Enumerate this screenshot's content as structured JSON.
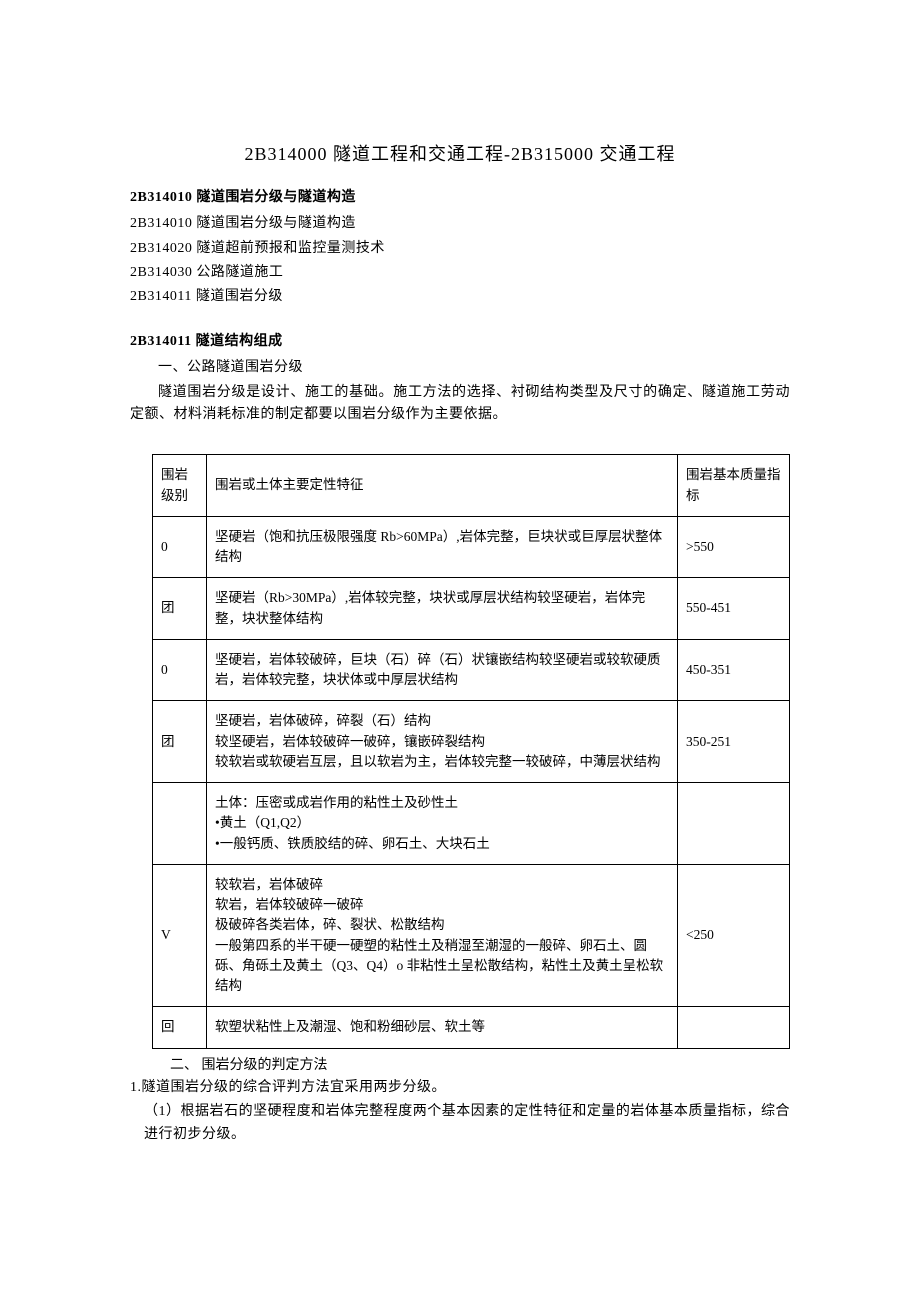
{
  "title": "2B314000 隧道工程和交通工程-2B315000 交通工程",
  "section1_head": "2B314010 隧道围岩分级与隧道构造",
  "toc": [
    "2B314010 隧道围岩分级与隧道构造",
    "2B314020 隧道超前预报和监控量测技术",
    "2B314030 公路隧道施工",
    "2B314011 隧道围岩分级"
  ],
  "section2_head": "2B314011 隧道结构组成",
  "sub_line1": "一、公路隧道围岩分级",
  "intro_para": "隧道围岩分级是设计、施工的基础。施工方法的选择、衬砌结构类型及尺寸的确定、隧道施工劳动定额、材料消耗标准的制定都要以围岩分级作为主要依据。",
  "table": {
    "header": [
      "围岩级别",
      "围岩或土体主要定性特征",
      "围岩基本质量指标"
    ],
    "rows": [
      [
        "0",
        "坚硬岩（饱和抗压极限强度 Rb>60MPa）,岩体完整，巨块状或巨厚层状整体结构",
        ">550"
      ],
      [
        "团",
        "坚硬岩（Rb>30MPa）,岩体较完整，块状或厚层状结构较坚硬岩，岩体完整，块状整体结构",
        "550-451"
      ],
      [
        "0",
        "坚硬岩，岩体较破碎，巨块（石）碎（石）状镶嵌结构较坚硬岩或较软硬质岩，岩体较完整，块状体或中厚层状结构",
        "450-351"
      ],
      [
        "团",
        "坚硬岩，岩体破碎，碎裂（石）结构\n较坚硬岩，岩体较破碎一破碎，镶嵌碎裂结构\n较软岩或软硬岩互层，且以软岩为主，岩体较完整一较破碎，中薄层状结构",
        "350-251"
      ],
      [
        "",
        "土体：压密或成岩作用的粘性土及砂性土\n•黄土（Q1,Q2）\n•一般钙质、铁质胶结的碎、卵石土、大块石土",
        ""
      ],
      [
        "V",
        "较软岩，岩体破碎\n软岩，岩体较破碎一破碎\n极破碎各类岩体，碎、裂状、松散结构\n一般第四系的半干硬一硬塑的粘性土及稍湿至潮湿的一般碎、卵石土、圆砾、角砾土及黄土（Q3、Q4）o 非粘性土呈松散结构，粘性土及黄土呈松软结构",
        "<250"
      ],
      [
        "回",
        "软塑状粘性上及潮湿、饱和粉细砂层、软土等",
        ""
      ]
    ]
  },
  "after_table": "二、 围岩分级的判定方法",
  "p1": "1.隧道围岩分级的综合评判方法宜采用两步分级。",
  "p2": "（1）根据岩石的坚硬程度和岩体完整程度两个基本因素的定性特征和定量的岩体基本质量指标，综合进行初步分级。"
}
